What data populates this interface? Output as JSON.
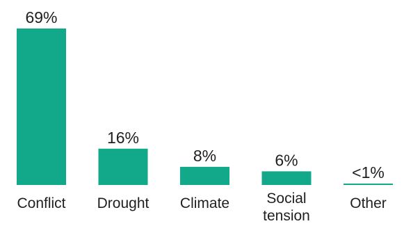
{
  "chart_data": {
    "type": "bar",
    "categories": [
      "Conflict",
      "Drought",
      "Climate",
      "Social tension",
      "Other"
    ],
    "category_lines": [
      [
        "Conflict"
      ],
      [
        "Drought"
      ],
      [
        "Climate"
      ],
      [
        "Social",
        "tension"
      ],
      [
        "Other"
      ]
    ],
    "values": [
      69,
      16,
      8,
      6,
      0.5
    ],
    "value_labels": [
      "69%",
      "16%",
      "8%",
      "6%",
      "<1%"
    ],
    "title": "",
    "xlabel": "",
    "ylabel": "",
    "ylim": [
      0,
      69
    ],
    "grid": false,
    "bar_color": "#12a88a"
  }
}
